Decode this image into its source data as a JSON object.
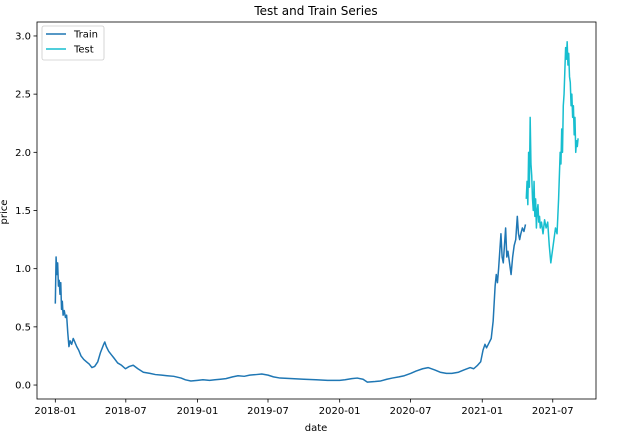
{
  "chart_data": {
    "type": "line",
    "title": "Test and Train Series",
    "xlabel": "date",
    "ylabel": "price",
    "x_axis_type": "date",
    "xlim": [
      "2017-11-15",
      "2021-10-20"
    ],
    "ylim": [
      -0.12,
      3.12
    ],
    "x_ticks": [
      "2018-01",
      "2018-07",
      "2019-01",
      "2019-07",
      "2020-01",
      "2020-07",
      "2021-01",
      "2021-07"
    ],
    "y_ticks": [
      "0.0",
      "0.5",
      "1.0",
      "1.5",
      "2.0",
      "2.5",
      "3.0"
    ],
    "grid": false,
    "legend_position": "top-left",
    "series": [
      {
        "name": "Train",
        "color": "#1f77b4",
        "points": [
          [
            "2018-01-01",
            0.7
          ],
          [
            "2018-01-03",
            1.1
          ],
          [
            "2018-01-05",
            0.95
          ],
          [
            "2018-01-07",
            1.05
          ],
          [
            "2018-01-09",
            0.85
          ],
          [
            "2018-01-11",
            0.9
          ],
          [
            "2018-01-13",
            0.78
          ],
          [
            "2018-01-15",
            0.88
          ],
          [
            "2018-01-17",
            0.65
          ],
          [
            "2018-01-19",
            0.72
          ],
          [
            "2018-01-21",
            0.6
          ],
          [
            "2018-01-24",
            0.64
          ],
          [
            "2018-01-27",
            0.58
          ],
          [
            "2018-01-30",
            0.6
          ],
          [
            "2018-02-02",
            0.45
          ],
          [
            "2018-02-05",
            0.33
          ],
          [
            "2018-02-08",
            0.38
          ],
          [
            "2018-02-12",
            0.35
          ],
          [
            "2018-02-16",
            0.4
          ],
          [
            "2018-02-20",
            0.37
          ],
          [
            "2018-02-25",
            0.33
          ],
          [
            "2018-03-02",
            0.3
          ],
          [
            "2018-03-08",
            0.25
          ],
          [
            "2018-03-15",
            0.22
          ],
          [
            "2018-03-22",
            0.2
          ],
          [
            "2018-03-29",
            0.18
          ],
          [
            "2018-04-05",
            0.15
          ],
          [
            "2018-04-12",
            0.16
          ],
          [
            "2018-04-20",
            0.2
          ],
          [
            "2018-04-27",
            0.28
          ],
          [
            "2018-05-04",
            0.34
          ],
          [
            "2018-05-08",
            0.37
          ],
          [
            "2018-05-12",
            0.33
          ],
          [
            "2018-05-18",
            0.29
          ],
          [
            "2018-05-25",
            0.26
          ],
          [
            "2018-06-01",
            0.23
          ],
          [
            "2018-06-10",
            0.19
          ],
          [
            "2018-06-20",
            0.17
          ],
          [
            "2018-06-30",
            0.14
          ],
          [
            "2018-07-10",
            0.16
          ],
          [
            "2018-07-20",
            0.17
          ],
          [
            "2018-08-01",
            0.14
          ],
          [
            "2018-08-15",
            0.11
          ],
          [
            "2018-09-01",
            0.1
          ],
          [
            "2018-09-15",
            0.09
          ],
          [
            "2018-10-01",
            0.085
          ],
          [
            "2018-10-15",
            0.08
          ],
          [
            "2018-11-01",
            0.075
          ],
          [
            "2018-11-20",
            0.06
          ],
          [
            "2018-12-01",
            0.045
          ],
          [
            "2018-12-15",
            0.035
          ],
          [
            "2019-01-01",
            0.04
          ],
          [
            "2019-01-15",
            0.045
          ],
          [
            "2019-02-01",
            0.04
          ],
          [
            "2019-02-15",
            0.045
          ],
          [
            "2019-03-01",
            0.05
          ],
          [
            "2019-03-15",
            0.055
          ],
          [
            "2019-04-01",
            0.07
          ],
          [
            "2019-04-15",
            0.08
          ],
          [
            "2019-05-01",
            0.075
          ],
          [
            "2019-05-15",
            0.085
          ],
          [
            "2019-06-01",
            0.09
          ],
          [
            "2019-06-15",
            0.095
          ],
          [
            "2019-07-01",
            0.085
          ],
          [
            "2019-07-15",
            0.07
          ],
          [
            "2019-08-01",
            0.06
          ],
          [
            "2019-09-01",
            0.055
          ],
          [
            "2019-10-01",
            0.05
          ],
          [
            "2019-11-01",
            0.045
          ],
          [
            "2019-12-01",
            0.04
          ],
          [
            "2020-01-01",
            0.04
          ],
          [
            "2020-01-15",
            0.045
          ],
          [
            "2020-02-01",
            0.055
          ],
          [
            "2020-02-15",
            0.06
          ],
          [
            "2020-03-01",
            0.05
          ],
          [
            "2020-03-12",
            0.025
          ],
          [
            "2020-04-01",
            0.03
          ],
          [
            "2020-04-15",
            0.035
          ],
          [
            "2020-05-01",
            0.05
          ],
          [
            "2020-05-15",
            0.06
          ],
          [
            "2020-06-01",
            0.07
          ],
          [
            "2020-06-15",
            0.08
          ],
          [
            "2020-07-01",
            0.1
          ],
          [
            "2020-07-15",
            0.12
          ],
          [
            "2020-08-01",
            0.14
          ],
          [
            "2020-08-15",
            0.15
          ],
          [
            "2020-09-01",
            0.13
          ],
          [
            "2020-09-15",
            0.11
          ],
          [
            "2020-10-01",
            0.1
          ],
          [
            "2020-10-15",
            0.1
          ],
          [
            "2020-11-01",
            0.11
          ],
          [
            "2020-11-15",
            0.13
          ],
          [
            "2020-12-01",
            0.15
          ],
          [
            "2020-12-10",
            0.14
          ],
          [
            "2020-12-20",
            0.17
          ],
          [
            "2020-12-28",
            0.2
          ],
          [
            "2021-01-03",
            0.3
          ],
          [
            "2021-01-08",
            0.35
          ],
          [
            "2021-01-12",
            0.32
          ],
          [
            "2021-01-18",
            0.36
          ],
          [
            "2021-01-24",
            0.4
          ],
          [
            "2021-01-29",
            0.55
          ],
          [
            "2021-02-03",
            0.85
          ],
          [
            "2021-02-06",
            0.95
          ],
          [
            "2021-02-09",
            0.88
          ],
          [
            "2021-02-12",
            1.0
          ],
          [
            "2021-02-15",
            1.15
          ],
          [
            "2021-02-18",
            1.3
          ],
          [
            "2021-02-21",
            1.1
          ],
          [
            "2021-02-24",
            1.05
          ],
          [
            "2021-02-27",
            1.2
          ],
          [
            "2021-03-02",
            1.35
          ],
          [
            "2021-03-05",
            1.1
          ],
          [
            "2021-03-08",
            1.15
          ],
          [
            "2021-03-12",
            1.05
          ],
          [
            "2021-03-16",
            0.95
          ],
          [
            "2021-03-20",
            1.1
          ],
          [
            "2021-03-24",
            1.2
          ],
          [
            "2021-03-28",
            1.25
          ],
          [
            "2021-04-01",
            1.45
          ],
          [
            "2021-04-04",
            1.3
          ],
          [
            "2021-04-07",
            1.25
          ],
          [
            "2021-04-10",
            1.3
          ],
          [
            "2021-04-14",
            1.35
          ],
          [
            "2021-04-18",
            1.32
          ],
          [
            "2021-04-22",
            1.38
          ]
        ]
      },
      {
        "name": "Test",
        "color": "#17becf",
        "points": [
          [
            "2021-04-24",
            1.6
          ],
          [
            "2021-04-26",
            1.75
          ],
          [
            "2021-04-28",
            1.55
          ],
          [
            "2021-04-30",
            2.0
          ],
          [
            "2021-05-02",
            1.7
          ],
          [
            "2021-05-04",
            2.3
          ],
          [
            "2021-05-06",
            1.9
          ],
          [
            "2021-05-08",
            1.8
          ],
          [
            "2021-05-10",
            1.6
          ],
          [
            "2021-05-12",
            1.5
          ],
          [
            "2021-05-14",
            1.75
          ],
          [
            "2021-05-16",
            1.45
          ],
          [
            "2021-05-18",
            1.6
          ],
          [
            "2021-05-20",
            1.35
          ],
          [
            "2021-05-22",
            1.5
          ],
          [
            "2021-05-24",
            1.55
          ],
          [
            "2021-05-26",
            1.4
          ],
          [
            "2021-05-28",
            1.45
          ],
          [
            "2021-05-30",
            1.35
          ],
          [
            "2021-06-02",
            1.4
          ],
          [
            "2021-06-06",
            1.3
          ],
          [
            "2021-06-10",
            1.42
          ],
          [
            "2021-06-14",
            1.35
          ],
          [
            "2021-06-18",
            1.4
          ],
          [
            "2021-06-22",
            1.2
          ],
          [
            "2021-06-26",
            1.05
          ],
          [
            "2021-06-30",
            1.15
          ],
          [
            "2021-07-04",
            1.25
          ],
          [
            "2021-07-08",
            1.35
          ],
          [
            "2021-07-12",
            1.3
          ],
          [
            "2021-07-16",
            1.6
          ],
          [
            "2021-07-20",
            2.0
          ],
          [
            "2021-07-22",
            1.9
          ],
          [
            "2021-07-24",
            2.2
          ],
          [
            "2021-07-26",
            2.0
          ],
          [
            "2021-07-28",
            2.4
          ],
          [
            "2021-07-30",
            2.5
          ],
          [
            "2021-08-01",
            2.7
          ],
          [
            "2021-08-03",
            2.9
          ],
          [
            "2021-08-05",
            2.8
          ],
          [
            "2021-08-07",
            2.95
          ],
          [
            "2021-08-09",
            2.75
          ],
          [
            "2021-08-11",
            2.85
          ],
          [
            "2021-08-13",
            2.65
          ],
          [
            "2021-08-15",
            2.6
          ],
          [
            "2021-08-17",
            2.4
          ],
          [
            "2021-08-19",
            2.5
          ],
          [
            "2021-08-21",
            2.3
          ],
          [
            "2021-08-23",
            2.4
          ],
          [
            "2021-08-25",
            2.15
          ],
          [
            "2021-08-27",
            2.3
          ],
          [
            "2021-08-29",
            2.0
          ],
          [
            "2021-08-31",
            2.1
          ],
          [
            "2021-09-02",
            2.05
          ],
          [
            "2021-09-04",
            2.12
          ]
        ]
      }
    ]
  }
}
